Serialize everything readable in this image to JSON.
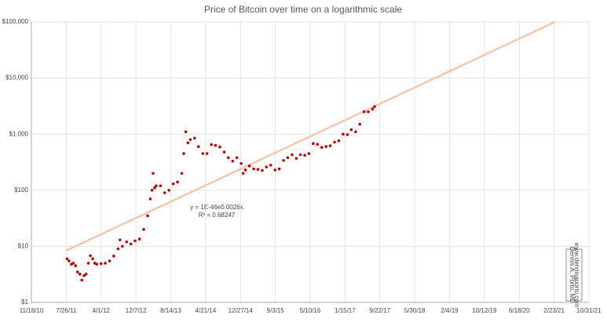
{
  "chart_data": {
    "type": "scatter",
    "title": "Price of Bitcoin over time on a logarithmic scale",
    "log_y": true,
    "grid": true,
    "xlim": [
      "11/18/10",
      "10/31/21"
    ],
    "xticks": [
      "11/18/10",
      "7/26/11",
      "4/1/12",
      "12/7/12",
      "8/14/13",
      "4/21/14",
      "12/27/14",
      "9/3/15",
      "5/10/16",
      "1/15/17",
      "9/22/17",
      "5/30/18",
      "2/4/19",
      "10/12/19",
      "6/18/20",
      "2/23/21",
      "10/31/21"
    ],
    "ylim": [
      1,
      100000
    ],
    "yticks": [
      {
        "value": 1,
        "label": "$1"
      },
      {
        "value": 10,
        "label": "$10"
      },
      {
        "value": 100,
        "label": "$100"
      },
      {
        "value": 1000,
        "label": "$1,000"
      },
      {
        "value": 10000,
        "label": "$10,000"
      },
      {
        "value": 100000,
        "label": "$100,000"
      }
    ],
    "series": [
      {
        "type": "scatter",
        "color": "#c00000",
        "x": [
          "8/1/11",
          "8/15/11",
          "9/1/11",
          "9/15/11",
          "10/1/11",
          "10/15/11",
          "11/1/11",
          "11/15/11",
          "12/1/11",
          "12/15/11",
          "1/1/12",
          "1/15/12",
          "2/1/12",
          "2/15/12",
          "3/1/12",
          "4/1/12",
          "5/1/12",
          "6/1/12",
          "7/1/12",
          "8/1/12",
          "8/15/12",
          "9/1/12",
          "10/1/12",
          "11/1/12",
          "12/1/12",
          "1/1/13",
          "2/1/13",
          "3/1/13",
          "3/20/13",
          "4/1/13",
          "4/9/13",
          "4/20/13",
          "5/1/13",
          "6/1/13",
          "7/1/13",
          "8/1/13",
          "9/1/13",
          "10/1/13",
          "11/1/13",
          "11/15/13",
          "11/30/13",
          "12/15/13",
          "1/1/14",
          "2/1/14",
          "3/1/14",
          "4/1/14",
          "5/1/14",
          "6/1/14",
          "7/1/14",
          "8/1/14",
          "9/1/14",
          "10/1/14",
          "11/1/14",
          "12/1/14",
          "1/1/15",
          "1/15/15",
          "2/1/15",
          "3/1/15",
          "4/1/15",
          "5/1/15",
          "6/1/15",
          "7/1/15",
          "8/1/15",
          "9/1/15",
          "10/1/15",
          "11/1/15",
          "12/1/15",
          "1/1/16",
          "2/1/16",
          "3/1/16",
          "4/1/16",
          "5/1/16",
          "6/1/16",
          "7/1/16",
          "8/1/16",
          "9/1/16",
          "10/1/16",
          "11/1/16",
          "12/1/16",
          "1/1/17",
          "2/1/17",
          "3/1/17",
          "4/1/17",
          "5/1/17",
          "6/1/17",
          "7/1/17",
          "8/1/17",
          "8/15/17"
        ],
        "values": [
          6,
          5.5,
          4.8,
          5,
          4.5,
          3.5,
          3.2,
          2.5,
          3,
          3.2,
          5,
          6.8,
          6,
          5,
          4.8,
          4.9,
          5,
          5.5,
          6.7,
          9,
          13,
          10,
          12,
          11,
          12.5,
          13.5,
          20,
          35,
          70,
          100,
          200,
          110,
          120,
          120,
          90,
          100,
          130,
          140,
          200,
          450,
          1100,
          700,
          800,
          850,
          600,
          450,
          450,
          650,
          630,
          590,
          480,
          380,
          330,
          380,
          300,
          200,
          230,
          270,
          240,
          235,
          225,
          260,
          280,
          230,
          240,
          340,
          380,
          430,
          370,
          430,
          420,
          450,
          680,
          660,
          580,
          600,
          620,
          720,
          760,
          1000,
          980,
          1200,
          1100,
          1500,
          2500,
          2500,
          2800,
          3100
        ]
      },
      {
        "type": "line",
        "color": "#f4c6ad",
        "x": [
          "7/26/11",
          "3/1/21"
        ],
        "values": [
          8.4,
          100000
        ]
      }
    ],
    "annotations": [
      "y = 1E-46e0.0026x",
      "R² = 0.68247"
    ],
    "credit": [
      "Dennis A. Porto, MD",
      "www.dennisaporto.com"
    ]
  }
}
